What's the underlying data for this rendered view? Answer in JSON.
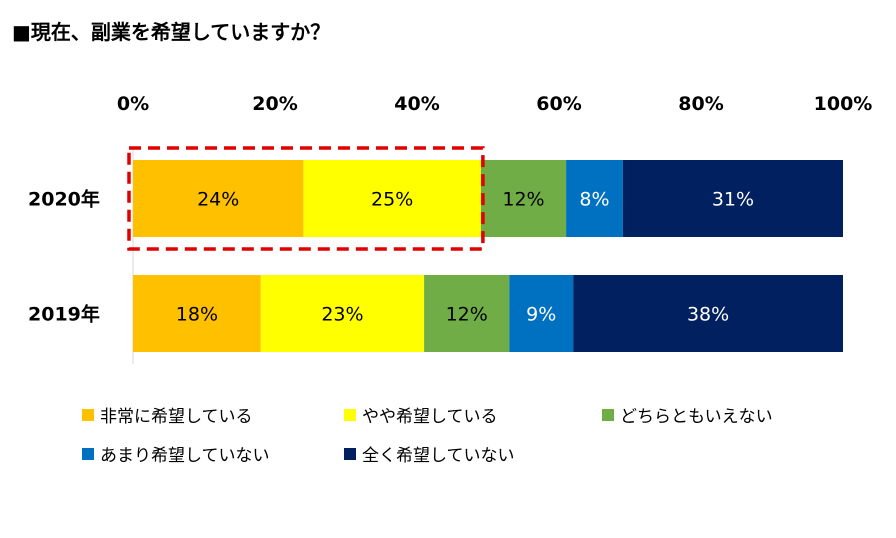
{
  "title": "■現在、副業を希望していますか？",
  "chart_data": {
    "type": "bar",
    "orientation": "horizontal",
    "stacked": true,
    "percent_stacked": true,
    "categories": [
      "2020年",
      "2019年"
    ],
    "xlim": [
      0,
      100
    ],
    "tick_labels": [
      "0%",
      "20%",
      "40%",
      "60%",
      "80%",
      "100%"
    ],
    "axis_position": "top",
    "series": [
      {
        "name": "非常に希望している",
        "color": "#FFC000",
        "text_color": "#000000",
        "values": [
          24,
          18
        ],
        "labels": [
          "24%",
          "18%"
        ]
      },
      {
        "name": "やや希望している",
        "color": "#FFFF00",
        "text_color": "#000000",
        "values": [
          25,
          23
        ],
        "labels": [
          "25%",
          "23%"
        ]
      },
      {
        "name": "どちらともいえない",
        "color": "#70AD47",
        "text_color": "#000000",
        "values": [
          12,
          12
        ],
        "labels": [
          "12%",
          "12%"
        ]
      },
      {
        "name": "あまり希望していない",
        "color": "#0070C0",
        "text_color": "#FFFFFF",
        "values": [
          8,
          9
        ],
        "labels": [
          "8%",
          "9%"
        ]
      },
      {
        "name": "全く希望していない",
        "color": "#002060",
        "text_color": "#FFFFFF",
        "values": [
          31,
          38
        ],
        "labels": [
          "31%",
          "38%"
        ]
      }
    ],
    "highlight": {
      "category": "2020年",
      "series": [
        "非常に希望している",
        "やや希望している"
      ],
      "style": "dashed-red-box",
      "color": "#E00000"
    },
    "legend_position": "bottom"
  }
}
